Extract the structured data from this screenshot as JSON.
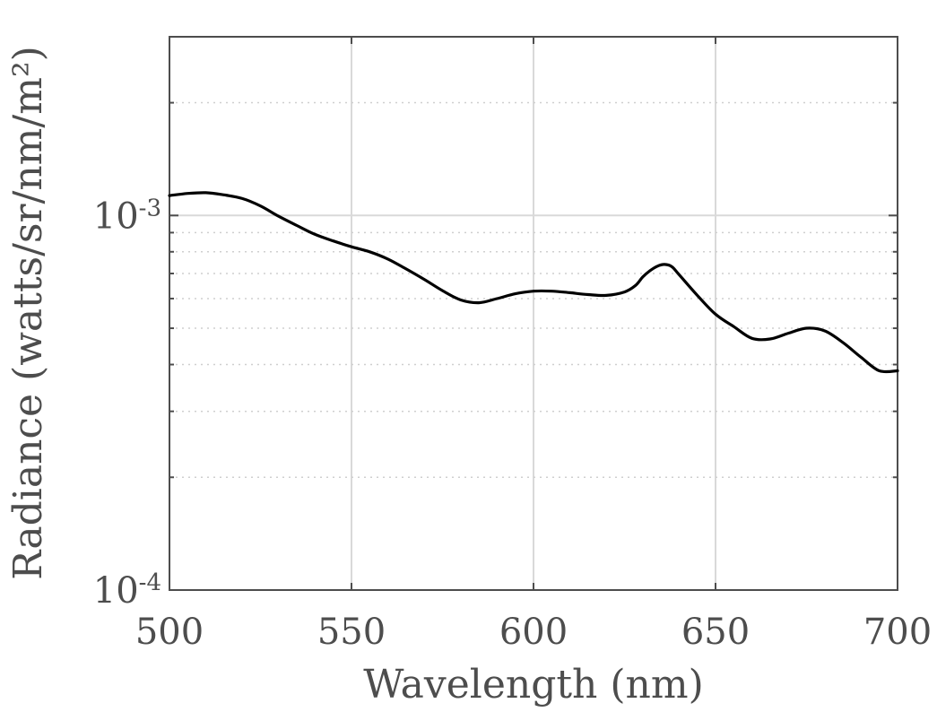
{
  "chart_data": {
    "type": "line",
    "title": "",
    "xlabel": "Wavelength (nm)",
    "ylabel": "Radiance  (watts/sr/nm/m²)",
    "xlim": [
      500,
      700
    ],
    "ylim": [
      0.0001,
      0.003
    ],
    "yscale": "log",
    "grid": true,
    "x_ticks": [
      {
        "value": 500,
        "label": "500"
      },
      {
        "value": 550,
        "label": "550"
      },
      {
        "value": 600,
        "label": "600"
      },
      {
        "value": 650,
        "label": "650"
      },
      {
        "value": 700,
        "label": "700"
      }
    ],
    "y_ticks": [
      {
        "value": 0.0001,
        "base": "10",
        "exp": "-4"
      },
      {
        "value": 0.001,
        "base": "10",
        "exp": "-3"
      }
    ],
    "series": [
      {
        "color": "#000000",
        "x": [
          500,
          505,
          510,
          515,
          520,
          525,
          530,
          535,
          540,
          545,
          550,
          555,
          560,
          565,
          570,
          575,
          580,
          585,
          590,
          595,
          600,
          605,
          610,
          615,
          620,
          625,
          628,
          630,
          632,
          634,
          636,
          638,
          640,
          645,
          650,
          655,
          660,
          665,
          670,
          675,
          680,
          685,
          690,
          695,
          700
        ],
        "y": [
          0.00113,
          0.001145,
          0.00115,
          0.001135,
          0.00111,
          0.00106,
          0.000995,
          0.00094,
          0.00089,
          0.000855,
          0.000825,
          0.0008,
          0.000765,
          0.00072,
          0.000675,
          0.00063,
          0.000595,
          0.000585,
          0.0006,
          0.000618,
          0.000628,
          0.000628,
          0.000622,
          0.000615,
          0.000612,
          0.000625,
          0.00065,
          0.000685,
          0.000712,
          0.000732,
          0.00074,
          0.00073,
          0.000695,
          0.000612,
          0.000545,
          0.000505,
          0.00047,
          0.000468,
          0.000485,
          0.0005,
          0.000492,
          0.000458,
          0.000418,
          0.000385,
          0.000385
        ]
      }
    ]
  }
}
